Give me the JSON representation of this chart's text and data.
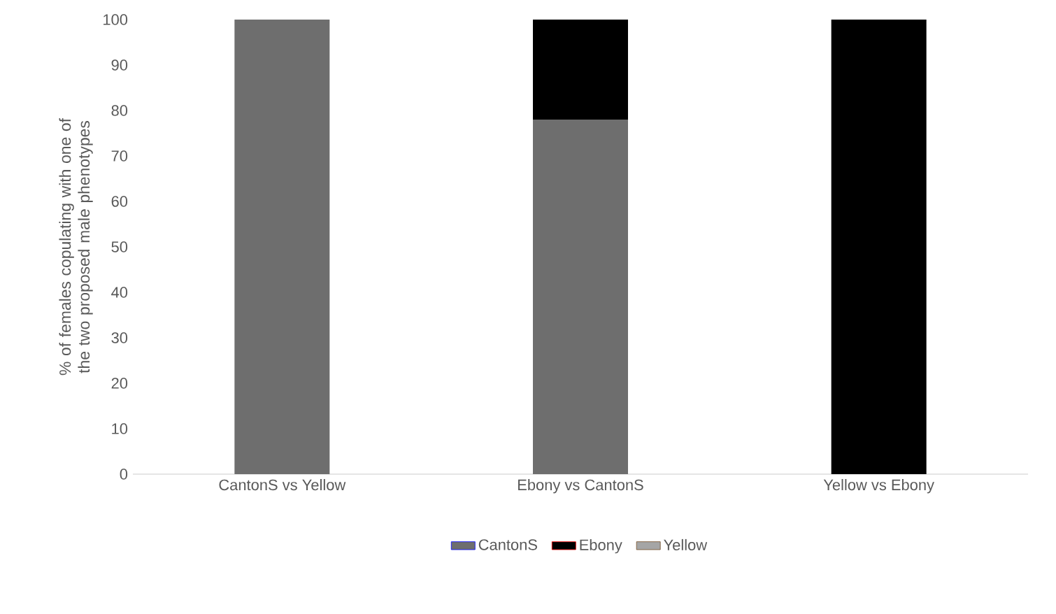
{
  "chart_data": {
    "type": "bar",
    "stacked": true,
    "ylabel": "% of females copulating with one of the two proposed male phenotypes",
    "categories": [
      "CantonS vs Yellow",
      "Ebony vs CantonS",
      "Yellow vs Ebony"
    ],
    "series": [
      {
        "name": "CantonS",
        "color": "#6e6e6e",
        "values": [
          100,
          78,
          0
        ]
      },
      {
        "name": "Ebony",
        "color": "#000000",
        "values": [
          0,
          22,
          100
        ]
      },
      {
        "name": "Yellow",
        "color": "#a5a5a5",
        "values": [
          0,
          0,
          0
        ]
      }
    ],
    "ylim": [
      0,
      100
    ],
    "yticks": [
      0,
      10,
      20,
      30,
      40,
      50,
      60,
      70,
      80,
      90,
      100
    ],
    "grid": false,
    "legend": "bottom"
  }
}
